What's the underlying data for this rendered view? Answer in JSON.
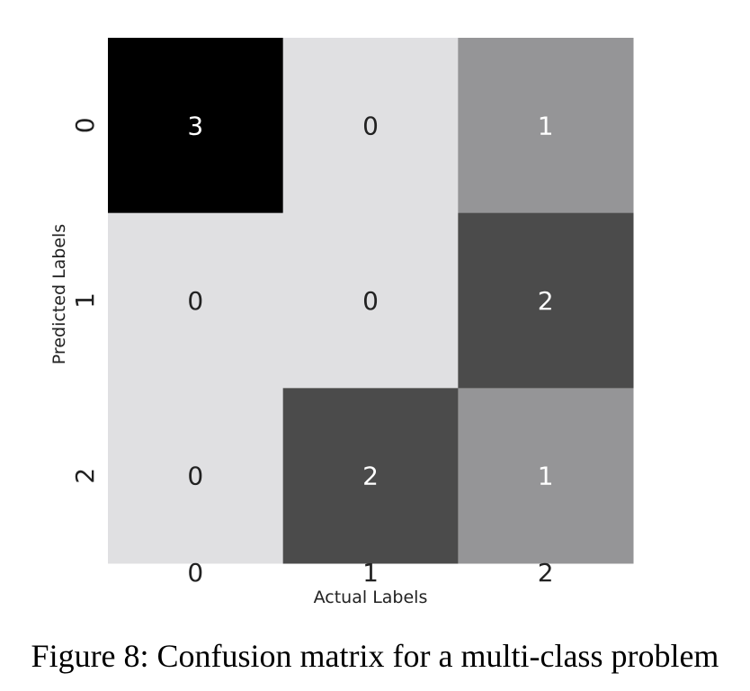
{
  "chart_data": {
    "type": "heatmap",
    "title": "",
    "xlabel": "Actual Labels",
    "ylabel": "Predicted Labels",
    "x_tick_labels": [
      "0",
      "1",
      "2"
    ],
    "y_tick_labels": [
      "0",
      "1",
      "2"
    ],
    "matrix": [
      [
        3,
        0,
        1
      ],
      [
        0,
        0,
        2
      ],
      [
        0,
        2,
        1
      ]
    ],
    "value_range": [
      0,
      3
    ],
    "colormap": {
      "low": "#e0e0e2",
      "high": "#000000"
    },
    "label_color_dark_bg": "#ffffff",
    "label_color_light_bg": "#222222",
    "colorbar": false,
    "grid": false
  },
  "caption": "Figure 8: Confusion matrix for a multi-class problem"
}
